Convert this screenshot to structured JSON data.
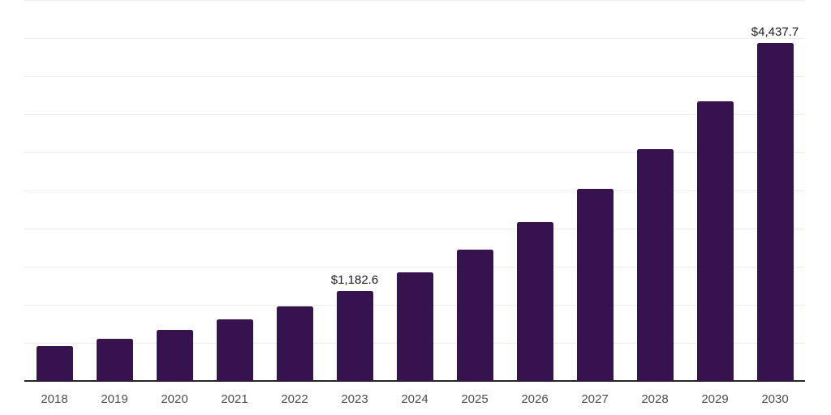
{
  "chart_data": {
    "type": "bar",
    "title": "",
    "xlabel": "",
    "ylabel": "",
    "categories": [
      "2018",
      "2019",
      "2020",
      "2021",
      "2022",
      "2023",
      "2024",
      "2025",
      "2026",
      "2027",
      "2028",
      "2029",
      "2030"
    ],
    "values": [
      460,
      556,
      671,
      810,
      979,
      1182.6,
      1428,
      1726,
      2084,
      2517,
      3041,
      3673,
      4437.7
    ],
    "data_labels": [
      null,
      null,
      null,
      null,
      null,
      "$1,182.6",
      null,
      null,
      null,
      null,
      null,
      null,
      "$4,437.7"
    ],
    "ylim": [
      0,
      5000
    ],
    "gridline_step": 500,
    "grid": true,
    "y_tick_labels_visible": false,
    "legend": "none"
  },
  "styles": {
    "bar_color": "#36124e",
    "grid_color": "#ededed",
    "axis_color": "#262626",
    "data_label_color": "#1a1a1a",
    "tick_label_color": "#4d4d4d",
    "background": "#ffffff"
  }
}
